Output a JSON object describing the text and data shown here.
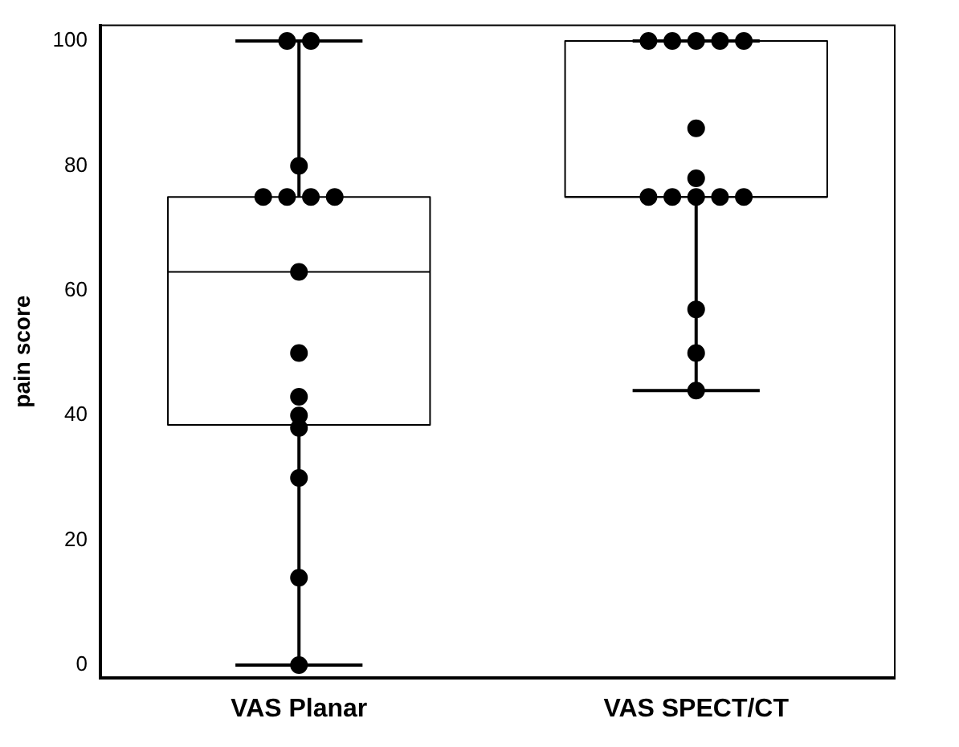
{
  "chart_data": {
    "type": "box",
    "categories": [
      "VAS Planar",
      "VAS SPECT/CT"
    ],
    "ylabel": "pain score",
    "ylim": [
      -2,
      102.5
    ],
    "yticks": [
      0,
      20,
      40,
      60,
      80,
      100
    ],
    "grid": false,
    "legend": false,
    "marker": "circle",
    "color": "#000000",
    "boxes": [
      {
        "low": 0,
        "q1": 38.5,
        "median": 63,
        "q3": 75,
        "high": 100
      },
      {
        "low": 44,
        "q1": 75,
        "median": 75,
        "q3": 100,
        "high": 100
      }
    ],
    "series": [
      {
        "type": "scatter",
        "color": "#000000",
        "x": [
          "VAS Planar",
          "VAS Planar",
          "VAS Planar",
          "VAS Planar",
          "VAS Planar",
          "VAS Planar",
          "VAS Planar",
          "VAS Planar",
          "VAS Planar",
          "VAS Planar",
          "VAS Planar",
          "VAS Planar",
          "VAS Planar",
          "VAS Planar",
          "VAS Planar"
        ],
        "values": [
          100,
          100,
          80,
          75,
          75,
          75,
          75,
          63,
          50,
          43,
          40,
          38,
          30,
          14,
          0
        ]
      },
      {
        "type": "scatter",
        "color": "#000000",
        "x": [
          "VAS SPECT/CT",
          "VAS SPECT/CT",
          "VAS SPECT/CT",
          "VAS SPECT/CT",
          "VAS SPECT/CT",
          "VAS SPECT/CT",
          "VAS SPECT/CT",
          "VAS SPECT/CT",
          "VAS SPECT/CT",
          "VAS SPECT/CT",
          "VAS SPECT/CT",
          "VAS SPECT/CT",
          "VAS SPECT/CT",
          "VAS SPECT/CT",
          "VAS SPECT/CT"
        ],
        "values": [
          100,
          100,
          100,
          100,
          100,
          86,
          78,
          75,
          75,
          75,
          75,
          75,
          57,
          50,
          44
        ]
      }
    ]
  }
}
